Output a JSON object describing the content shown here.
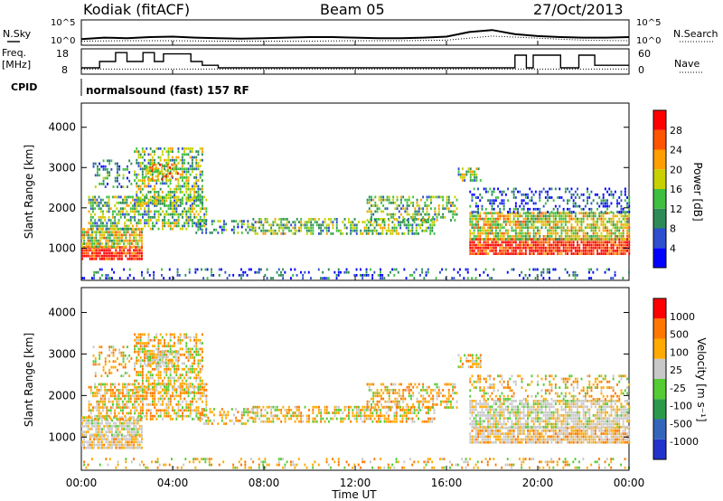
{
  "header": {
    "station": "Kodiak (fitACF)",
    "beam": "Beam 05",
    "date": "27/Oct/2013"
  },
  "panels": {
    "nsky_label": "N.Sky",
    "nsearch_label": "N.Search",
    "freq_label_1": "Freq.",
    "freq_label_2": "[MHz]",
    "nave_label": "Nave",
    "cpid_label": "CPID",
    "cpid_value": "normalsound (fast) 157 RF",
    "nsky_ticks": [
      "10^5",
      "10^0"
    ],
    "nsearch_ticks": [
      "10^5",
      "10^0"
    ],
    "freq_ticks": [
      "18",
      "8"
    ],
    "nave_ticks": [
      "60",
      "0"
    ]
  },
  "chart_data": [
    {
      "type": "line",
      "name": "noise",
      "x_range": [
        0,
        24
      ],
      "series": [
        {
          "name": "N.Sky",
          "style": "solid",
          "x": [
            0,
            1,
            2,
            3,
            4,
            5,
            6,
            7,
            8,
            9,
            10,
            11,
            12,
            13,
            14,
            15,
            16,
            17,
            18,
            19,
            20,
            21,
            22,
            23,
            24
          ],
          "y": [
            1.2,
            1.5,
            1.4,
            1.6,
            1.7,
            1.5,
            1.4,
            1.3,
            1.4,
            1.5,
            1.6,
            1.6,
            1.5,
            1.4,
            1.4,
            1.5,
            1.7,
            2.6,
            3.0,
            2.2,
            1.8,
            1.6,
            1.5,
            1.5,
            1.6
          ]
        },
        {
          "name": "N.Search",
          "style": "dotted",
          "x": [
            0,
            2,
            4,
            6,
            8,
            10,
            12,
            14,
            16,
            18,
            20,
            22,
            24
          ],
          "y": [
            0.8,
            0.9,
            0.9,
            0.8,
            0.8,
            0.8,
            0.9,
            0.9,
            1.0,
            1.8,
            1.4,
            1.0,
            0.9
          ]
        }
      ]
    },
    {
      "type": "line",
      "name": "frequency",
      "x_range": [
        0,
        24
      ],
      "ylim": [
        8,
        18
      ],
      "series": [
        {
          "name": "Freq",
          "style": "step",
          "x": [
            0,
            0.8,
            1.5,
            2.0,
            2.7,
            3.2,
            3.6,
            4.8,
            5.3,
            6.0,
            18.7,
            19.0,
            19.5,
            19.8,
            21.0,
            21.8,
            22.5,
            24
          ],
          "y": [
            10.5,
            13.0,
            16.5,
            13.0,
            16.5,
            13.0,
            16.0,
            13.0,
            11.5,
            10.5,
            10.5,
            15.5,
            10.5,
            15.5,
            10.5,
            15.5,
            11.5,
            11.5
          ]
        },
        {
          "name": "Nave",
          "style": "dotted",
          "x": [
            0,
            24
          ],
          "y": [
            10.0,
            10.0
          ]
        }
      ]
    },
    {
      "type": "heatmap",
      "name": "power",
      "ylabel": "Slant Range [km]",
      "yticks": [
        1000,
        2000,
        3000,
        4000
      ],
      "ylim": [
        200,
        4600
      ],
      "x_range": [
        0,
        24
      ],
      "colorbar_label": "Power [dB]",
      "colorbar_ticks": [
        "28",
        "24",
        "20",
        "16",
        "12",
        "8",
        "4"
      ],
      "colors": [
        "#0000ff",
        "#2f4fcf",
        "#2e8b57",
        "#3fbf3f",
        "#c8d000",
        "#ff9f00",
        "#ff5500",
        "#ff0000"
      ]
    },
    {
      "type": "heatmap",
      "name": "velocity",
      "ylabel": "Slant Range [km]",
      "yticks": [
        1000,
        2000,
        3000,
        4000
      ],
      "ylim": [
        200,
        4600
      ],
      "x_range": [
        0,
        24
      ],
      "colorbar_label": "Velocity [m s⁻¹]",
      "colorbar_ticks": [
        "1000",
        "500",
        "100",
        "25",
        "-25",
        "-100",
        "-500",
        "-1000"
      ],
      "colors": [
        "#2233cc",
        "#3366bb",
        "#2a9a4a",
        "#55cc33",
        "#c8c8c8",
        "#ffaa00",
        "#ff7700",
        "#ff0000"
      ],
      "xticks": [
        "00:00",
        "04:00",
        "08:00",
        "12:00",
        "16:00",
        "20:00",
        "00:00"
      ],
      "xlabel": "Time UT"
    }
  ]
}
